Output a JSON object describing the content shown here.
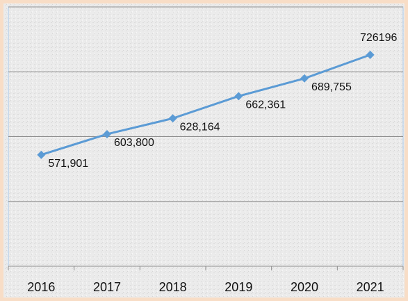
{
  "chart_data": {
    "type": "line",
    "categories": [
      "2016",
      "2017",
      "2018",
      "2019",
      "2020",
      "2021"
    ],
    "series": [
      {
        "color": "#5b9bd5",
        "values": [
          571901,
          603800,
          628164,
          662361,
          689755,
          726196
        ],
        "value_labels": [
          "571,901",
          "603,800",
          "628,164",
          "662,361",
          "689,755",
          "726196"
        ]
      }
    ],
    "ylim": [
      400000,
      800000
    ],
    "yticks": [
      400000,
      500000,
      600000,
      700000,
      800000
    ],
    "grid": true
  }
}
